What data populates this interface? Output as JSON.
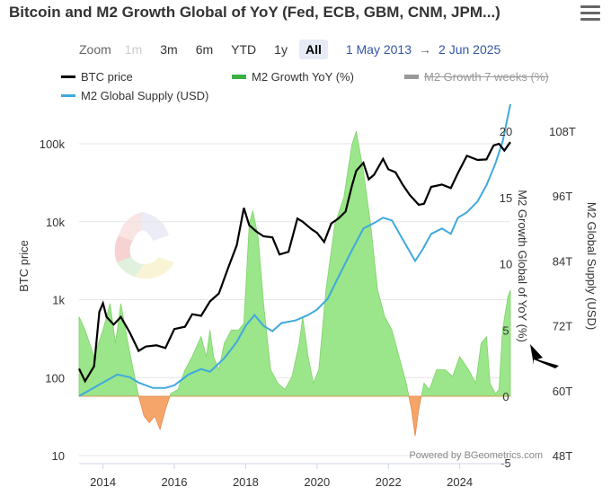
{
  "title": "Bitcoin and M2 Growth Global of YoY (Fed, ECB, GBM, CNM, JPM...)",
  "range_selector": {
    "zoom_label": "Zoom",
    "buttons": [
      "1m",
      "3m",
      "6m",
      "YTD",
      "1y",
      "All"
    ],
    "disabled": [
      "1m"
    ],
    "selected": "All",
    "from_date": "1 May 2013",
    "arrow": "→",
    "to_date": "2 Jun 2025"
  },
  "credit": "Powered by BGeometrics.com",
  "colors": {
    "btc": "#000000",
    "m2_supply": "#3fa9dd",
    "growth_positive": "#9be58a",
    "growth_negative": "#f5a56a",
    "growth_7w": "#888888"
  },
  "chart_data": {
    "type": "line",
    "x_ticks": [
      "2014",
      "2016",
      "2018",
      "2020",
      "2022",
      "2024"
    ],
    "x_range": [
      2013.33,
      2025.42
    ],
    "legend": [
      {
        "name": "BTC price",
        "visible": true
      },
      {
        "name": "M2 Growth YoY (%)",
        "visible": true
      },
      {
        "name": "M2 Growth 7 weeks (%)",
        "visible": false
      },
      {
        "name": "M2 Global Supply (USD)",
        "visible": true
      }
    ],
    "axes": {
      "btc": {
        "label": "BTC price",
        "scale": "log",
        "ticks": [
          "10",
          "100",
          "1k",
          "10k",
          "100k"
        ],
        "range": [
          10,
          300000
        ]
      },
      "growth": {
        "label": "M2 Growth Global of YoY (%)",
        "ticks": [
          "-5",
          "0",
          "5",
          "10",
          "15",
          "20"
        ],
        "range": [
          -5,
          22
        ]
      },
      "supply": {
        "label": "M2 Global Supply (USD)",
        "ticks": [
          "48T",
          "60T",
          "72T",
          "84T",
          "96T",
          "108T"
        ],
        "range": [
          48,
          110
        ]
      }
    },
    "series": [
      {
        "name": "BTC price",
        "axis": "btc",
        "points": [
          [
            2013.33,
            130
          ],
          [
            2013.5,
            90
          ],
          [
            2013.75,
            140
          ],
          [
            2013.9,
            700
          ],
          [
            2014.0,
            900
          ],
          [
            2014.1,
            600
          ],
          [
            2014.3,
            480
          ],
          [
            2014.5,
            600
          ],
          [
            2014.75,
            380
          ],
          [
            2015.0,
            220
          ],
          [
            2015.2,
            250
          ],
          [
            2015.5,
            260
          ],
          [
            2015.75,
            240
          ],
          [
            2016.0,
            420
          ],
          [
            2016.3,
            450
          ],
          [
            2016.5,
            650
          ],
          [
            2016.75,
            620
          ],
          [
            2017.0,
            950
          ],
          [
            2017.25,
            1200
          ],
          [
            2017.5,
            2500
          ],
          [
            2017.75,
            5000
          ],
          [
            2017.95,
            15000
          ],
          [
            2018.1,
            9000
          ],
          [
            2018.3,
            7500
          ],
          [
            2018.5,
            6500
          ],
          [
            2018.75,
            6300
          ],
          [
            2018.95,
            3800
          ],
          [
            2019.2,
            4100
          ],
          [
            2019.45,
            11000
          ],
          [
            2019.6,
            10000
          ],
          [
            2019.85,
            8000
          ],
          [
            2020.0,
            7200
          ],
          [
            2020.2,
            5500
          ],
          [
            2020.4,
            9500
          ],
          [
            2020.6,
            11000
          ],
          [
            2020.8,
            13500
          ],
          [
            2020.98,
            29000
          ],
          [
            2021.1,
            45000
          ],
          [
            2021.3,
            57000
          ],
          [
            2021.45,
            35000
          ],
          [
            2021.6,
            40000
          ],
          [
            2021.85,
            64000
          ],
          [
            2022.0,
            47000
          ],
          [
            2022.2,
            43000
          ],
          [
            2022.4,
            30000
          ],
          [
            2022.6,
            22000
          ],
          [
            2022.85,
            16500
          ],
          [
            2023.0,
            17000
          ],
          [
            2023.2,
            28000
          ],
          [
            2023.5,
            30000
          ],
          [
            2023.75,
            27000
          ],
          [
            2023.95,
            42000
          ],
          [
            2024.2,
            70000
          ],
          [
            2024.5,
            62000
          ],
          [
            2024.75,
            63000
          ],
          [
            2024.95,
            95000
          ],
          [
            2025.1,
            100000
          ],
          [
            2025.25,
            82000
          ],
          [
            2025.42,
            105000
          ]
        ]
      },
      {
        "name": "M2 Global Supply (USD)",
        "axis": "supply",
        "points": [
          [
            2013.33,
            59
          ],
          [
            2013.6,
            60
          ],
          [
            2014.0,
            61.5
          ],
          [
            2014.4,
            63
          ],
          [
            2014.75,
            62.5
          ],
          [
            2015.0,
            61.5
          ],
          [
            2015.4,
            60.5
          ],
          [
            2015.75,
            60.5
          ],
          [
            2016.0,
            61
          ],
          [
            2016.4,
            63
          ],
          [
            2016.75,
            64
          ],
          [
            2017.0,
            63.5
          ],
          [
            2017.4,
            66
          ],
          [
            2017.75,
            69
          ],
          [
            2018.0,
            72
          ],
          [
            2018.25,
            74
          ],
          [
            2018.5,
            72
          ],
          [
            2018.75,
            71
          ],
          [
            2019.0,
            72.5
          ],
          [
            2019.4,
            73
          ],
          [
            2019.75,
            74
          ],
          [
            2020.0,
            75
          ],
          [
            2020.3,
            77
          ],
          [
            2020.6,
            81
          ],
          [
            2020.98,
            86
          ],
          [
            2021.3,
            90
          ],
          [
            2021.6,
            91
          ],
          [
            2021.85,
            92
          ],
          [
            2022.1,
            91.5
          ],
          [
            2022.4,
            88
          ],
          [
            2022.75,
            84
          ],
          [
            2022.95,
            86
          ],
          [
            2023.2,
            89
          ],
          [
            2023.5,
            90
          ],
          [
            2023.75,
            89
          ],
          [
            2023.95,
            92
          ],
          [
            2024.2,
            93
          ],
          [
            2024.5,
            95
          ],
          [
            2024.75,
            98
          ],
          [
            2025.0,
            102
          ],
          [
            2025.2,
            106
          ],
          [
            2025.42,
            113
          ]
        ]
      },
      {
        "name": "M2 Growth YoY (%)",
        "axis": "growth",
        "points": [
          [
            2013.33,
            6
          ],
          [
            2013.5,
            5
          ],
          [
            2013.75,
            3
          ],
          [
            2014.0,
            5
          ],
          [
            2014.2,
            7
          ],
          [
            2014.35,
            4
          ],
          [
            2014.5,
            7
          ],
          [
            2014.7,
            4
          ],
          [
            2014.85,
            2
          ],
          [
            2015.0,
            0
          ],
          [
            2015.15,
            -1.5
          ],
          [
            2015.3,
            -2
          ],
          [
            2015.45,
            -1.5
          ],
          [
            2015.6,
            -2.5
          ],
          [
            2015.75,
            -1
          ],
          [
            2015.9,
            0.2
          ],
          [
            2016.1,
            0.5
          ],
          [
            2016.3,
            2
          ],
          [
            2016.5,
            3
          ],
          [
            2016.75,
            4.5
          ],
          [
            2016.9,
            3
          ],
          [
            2017.0,
            5
          ],
          [
            2017.1,
            3
          ],
          [
            2017.25,
            2
          ],
          [
            2017.4,
            4
          ],
          [
            2017.6,
            5
          ],
          [
            2017.8,
            5
          ],
          [
            2017.95,
            5.5
          ],
          [
            2018.1,
            13
          ],
          [
            2018.2,
            14
          ],
          [
            2018.35,
            12
          ],
          [
            2018.5,
            7
          ],
          [
            2018.7,
            2
          ],
          [
            2018.9,
            1
          ],
          [
            2019.1,
            0.5
          ],
          [
            2019.3,
            1.5
          ],
          [
            2019.5,
            4
          ],
          [
            2019.6,
            6
          ],
          [
            2019.75,
            3
          ],
          [
            2019.9,
            1
          ],
          [
            2020.05,
            2
          ],
          [
            2020.25,
            8
          ],
          [
            2020.5,
            13
          ],
          [
            2020.75,
            15
          ],
          [
            2020.98,
            19
          ],
          [
            2021.1,
            20
          ],
          [
            2021.3,
            17
          ],
          [
            2021.5,
            13
          ],
          [
            2021.7,
            8
          ],
          [
            2021.9,
            6
          ],
          [
            2022.1,
            5
          ],
          [
            2022.3,
            3
          ],
          [
            2022.5,
            1
          ],
          [
            2022.65,
            -1
          ],
          [
            2022.75,
            -3
          ],
          [
            2022.85,
            -1
          ],
          [
            2023.0,
            1
          ],
          [
            2023.15,
            0.5
          ],
          [
            2023.35,
            2
          ],
          [
            2023.6,
            2
          ],
          [
            2023.8,
            1.5
          ],
          [
            2024.0,
            3
          ],
          [
            2024.25,
            2
          ],
          [
            2024.45,
            1
          ],
          [
            2024.6,
            4
          ],
          [
            2024.75,
            4.5
          ],
          [
            2024.85,
            1
          ],
          [
            2025.0,
            0.2
          ],
          [
            2025.1,
            0.5
          ],
          [
            2025.2,
            5
          ],
          [
            2025.35,
            7.5
          ],
          [
            2025.42,
            8
          ]
        ]
      }
    ]
  }
}
